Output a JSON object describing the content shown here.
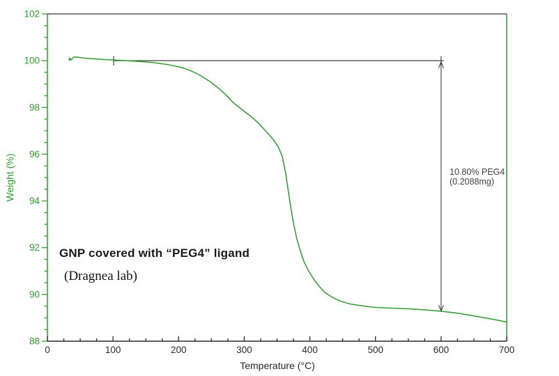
{
  "page": {
    "background": "#ffffff"
  },
  "labels": {
    "sample_title": "GNP covered with “PEG4” ligand",
    "sample_subtitle": "(Dragnea lab)"
  },
  "chart_data": {
    "type": "line",
    "title": "",
    "xlabel": "Temperature (°C)",
    "ylabel": "Weight (%)",
    "xlim": [
      0,
      700
    ],
    "ylim": [
      88,
      102
    ],
    "grid": false,
    "legend": "none",
    "x_major_ticks": [
      0,
      100,
      200,
      300,
      400,
      500,
      600,
      700
    ],
    "x_tick_labels": [
      "0",
      "100",
      "200",
      "300",
      "400",
      "500",
      "600",
      "700"
    ],
    "x_minor_step": 25,
    "y_major_ticks": [
      88,
      90,
      92,
      94,
      96,
      98,
      100,
      102
    ],
    "y_tick_labels": [
      "88",
      "90",
      "92",
      "94",
      "96",
      "98",
      "100",
      "102"
    ],
    "y_minor_step": 0.5,
    "colors": {
      "curve": "#2e9b2e",
      "y_axis": "#2e9b2e",
      "x_axis": "#2b2b2b",
      "top_border": "#808080",
      "annotation_line": "#3f3f3f"
    },
    "series": [
      {
        "name": "GNP-PEG4 TGA weight loss",
        "color": "#2e9b2e",
        "points": [
          [
            33,
            100.03
          ],
          [
            34,
            100.12
          ],
          [
            35,
            100.02
          ],
          [
            37,
            100.07
          ],
          [
            40,
            100.15
          ],
          [
            45,
            100.16
          ],
          [
            50,
            100.13
          ],
          [
            60,
            100.1
          ],
          [
            80,
            100.06
          ],
          [
            100,
            100.03
          ],
          [
            120,
            100.0
          ],
          [
            140,
            99.97
          ],
          [
            160,
            99.92
          ],
          [
            180,
            99.85
          ],
          [
            200,
            99.74
          ],
          [
            212,
            99.64
          ],
          [
            224,
            99.5
          ],
          [
            236,
            99.32
          ],
          [
            248,
            99.1
          ],
          [
            260,
            98.84
          ],
          [
            272,
            98.54
          ],
          [
            284,
            98.18
          ],
          [
            296,
            97.92
          ],
          [
            310,
            97.62
          ],
          [
            322,
            97.32
          ],
          [
            334,
            96.95
          ],
          [
            345,
            96.6
          ],
          [
            352,
            96.3
          ],
          [
            358,
            95.9
          ],
          [
            363,
            95.2
          ],
          [
            367,
            94.45
          ],
          [
            371,
            93.7
          ],
          [
            375,
            93.05
          ],
          [
            380,
            92.4
          ],
          [
            385,
            91.9
          ],
          [
            391,
            91.4
          ],
          [
            398,
            91.0
          ],
          [
            406,
            90.65
          ],
          [
            414,
            90.35
          ],
          [
            423,
            90.08
          ],
          [
            434,
            89.88
          ],
          [
            446,
            89.72
          ],
          [
            460,
            89.6
          ],
          [
            475,
            89.53
          ],
          [
            492,
            89.47
          ],
          [
            510,
            89.43
          ],
          [
            530,
            89.41
          ],
          [
            555,
            89.38
          ],
          [
            580,
            89.33
          ],
          [
            600,
            89.28
          ],
          [
            622,
            89.21
          ],
          [
            642,
            89.12
          ],
          [
            662,
            89.02
          ],
          [
            682,
            88.92
          ],
          [
            700,
            88.82
          ]
        ]
      }
    ],
    "annotation": {
      "label_line1": "10.80% PEG4",
      "label_line2": "(0.2088mg)",
      "ref_level_pct": 100.0,
      "ref_start_temp": 101,
      "arrow_temp": 600,
      "arrow_bottom_pct": 89.25
    }
  }
}
